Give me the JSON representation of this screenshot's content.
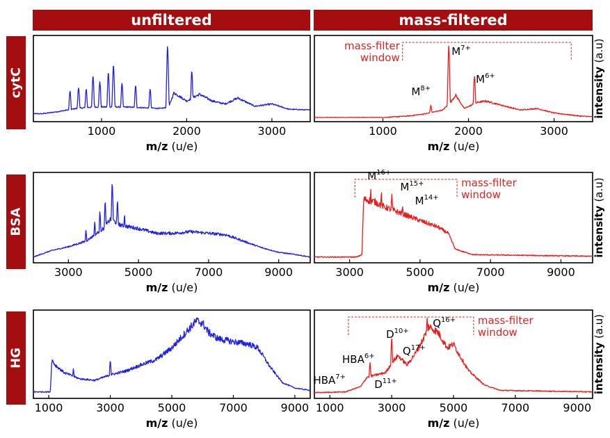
{
  "column_headers": [
    "unfiltered",
    "mass-filtered"
  ],
  "row_headers": [
    "cytC",
    "BSA",
    "HG"
  ],
  "colors": {
    "header_bg": "#a40e10",
    "unfiltered": "#1f1fe6",
    "filtered": "#ee1a1a",
    "annotation": "#e0211e"
  },
  "chart_data": [
    {
      "type": "line",
      "panel": "cytC-unfiltered",
      "color": "#1f1fe6",
      "xlabel_bold": "m/z",
      "xlabel_unit": " (u/e)",
      "ylabel": "",
      "xlim": [
        200,
        3450
      ],
      "xticks": [
        1000,
        2000,
        3000
      ],
      "tick_labels": [
        "1000",
        "2000",
        "3000"
      ],
      "x": [
        300,
        500,
        700,
        900,
        1100,
        1300,
        1500,
        1700,
        1790,
        1850,
        2000,
        2150,
        2300,
        2450,
        2600,
        2800,
        3000,
        3200,
        3450
      ],
      "y": [
        5,
        8,
        12,
        14,
        14,
        14,
        13,
        12,
        14,
        33,
        22,
        31,
        22,
        18,
        26,
        15,
        18,
        11,
        10
      ],
      "peaks": [
        [
          630,
          35
        ],
        [
          730,
          40
        ],
        [
          820,
          38
        ],
        [
          900,
          55
        ],
        [
          980,
          48
        ],
        [
          1080,
          60
        ],
        [
          1140,
          70
        ],
        [
          1240,
          45
        ],
        [
          1400,
          42
        ],
        [
          1570,
          38
        ],
        [
          1775,
          95
        ],
        [
          2060,
          62
        ]
      ]
    },
    {
      "type": "line",
      "panel": "cytC-filtered",
      "color": "#ee1a1a",
      "xlabel_bold": "m/z",
      "xlabel_unit": " (u/e)",
      "ylabel": "intensity (a.u)",
      "xlim": [
        200,
        3450
      ],
      "xticks": [
        1000,
        2000,
        3000
      ],
      "tick_labels": [
        "1000",
        "2000",
        "3000"
      ],
      "x": [
        200,
        1000,
        1300,
        1500,
        1700,
        1790,
        1850,
        1950,
        2100,
        2200,
        2400,
        2600,
        2800,
        3000,
        3300,
        3450
      ],
      "y": [
        0,
        0,
        2,
        5,
        10,
        20,
        30,
        12,
        20,
        22,
        16,
        10,
        12,
        6,
        2,
        1
      ],
      "peaks": [
        [
          1560,
          16
        ],
        [
          1770,
          96
        ],
        [
          2070,
          55
        ]
      ],
      "labels": [
        {
          "base": "M",
          "sup": "7+",
          "x": 1770
        },
        {
          "base": "M",
          "sup": "6+",
          "x": 2070
        },
        {
          "base": "M",
          "sup": "8+",
          "x": 1560
        }
      ],
      "window_label": [
        "mass-filter",
        "window"
      ],
      "window_range": [
        1230,
        3200
      ]
    },
    {
      "type": "line",
      "panel": "BSA-unfiltered",
      "color": "#1f1fe6",
      "xlabel_bold": "m/z",
      "xlabel_unit": " (u/e)",
      "ylabel": "",
      "xlim": [
        2000,
        9900
      ],
      "xticks": [
        3000,
        5000,
        7000,
        9000
      ],
      "tick_labels": [
        "3000",
        "5000",
        "7000",
        "9000"
      ],
      "x": [
        2000,
        2500,
        3000,
        3500,
        4000,
        4200,
        4500,
        5000,
        5500,
        6000,
        6500,
        7000,
        7500,
        8000,
        8500,
        9000,
        9500,
        9900
      ],
      "y": [
        2,
        10,
        15,
        22,
        38,
        50,
        42,
        38,
        32,
        32,
        34,
        32,
        30,
        22,
        14,
        8,
        5,
        2
      ],
      "peaks": [
        [
          3500,
          35
        ],
        [
          3750,
          45
        ],
        [
          3900,
          58
        ],
        [
          4050,
          70
        ],
        [
          4250,
          95
        ],
        [
          4400,
          70
        ],
        [
          4600,
          55
        ]
      ]
    },
    {
      "type": "line",
      "panel": "BSA-filtered",
      "color": "#ee1a1a",
      "xlabel_bold": "m/z",
      "xlabel_unit": " (u/e)",
      "ylabel": "intensity (a.u)",
      "xlim": [
        2000,
        9900
      ],
      "xticks": [
        3000,
        5000,
        7000,
        9000
      ],
      "tick_labels": [
        "3000",
        "5000",
        "7000",
        "9000"
      ],
      "x": [
        2000,
        3200,
        3350,
        3400,
        3700,
        4000,
        4300,
        4600,
        5000,
        5500,
        5800,
        6000,
        6500,
        9900
      ],
      "y": [
        2,
        2,
        5,
        75,
        72,
        65,
        60,
        55,
        48,
        40,
        32,
        12,
        5,
        3
      ],
      "peaks": [
        [
          3600,
          85
        ],
        [
          3900,
          83
        ],
        [
          4200,
          80
        ],
        [
          4500,
          65
        ]
      ],
      "labels": [
        {
          "base": "M",
          "sup": "16+",
          "x": 3900
        },
        {
          "base": "M",
          "sup": "15+",
          "x": 4200
        },
        {
          "base": "M",
          "sup": "14+",
          "x": 4500
        }
      ],
      "window_label": [
        "mass-filter",
        "window"
      ],
      "window_range": [
        3150,
        6050
      ]
    },
    {
      "type": "line",
      "panel": "HG-unfiltered",
      "color": "#1f1fe6",
      "xlabel_bold": "m/z",
      "xlabel_unit": " (u/e)",
      "ylabel": "",
      "xlim": [
        500,
        9500
      ],
      "xticks": [
        1000,
        3000,
        5000,
        7000,
        9000
      ],
      "tick_labels": [
        "1000",
        "3000",
        "5000",
        "7000",
        "9000"
      ],
      "x": [
        500,
        1050,
        1100,
        1200,
        1500,
        2000,
        2500,
        3000,
        3500,
        4000,
        4500,
        5000,
        5500,
        5800,
        6000,
        6200,
        6500,
        7000,
        7500,
        7800,
        8200,
        8600,
        9000,
        9500
      ],
      "y": [
        3,
        3,
        45,
        38,
        28,
        20,
        18,
        25,
        30,
        38,
        45,
        60,
        82,
        95,
        92,
        80,
        72,
        68,
        65,
        60,
        35,
        15,
        8,
        5
      ],
      "peaks": [
        [
          1800,
          32
        ],
        [
          3000,
          44
        ],
        [
          3300,
          28
        ],
        [
          4100,
          33
        ]
      ]
    },
    {
      "type": "line",
      "panel": "HG-filtered",
      "color": "#ee1a1a",
      "xlabel_bold": "m/z",
      "xlabel_unit": " (u/e)",
      "ylabel": "intensity (a.u)",
      "xlim": [
        500,
        9500
      ],
      "xticks": [
        1000,
        3000,
        5000,
        7000,
        9000
      ],
      "tick_labels": [
        "1000",
        "3000",
        "5000",
        "7000",
        "9000"
      ],
      "x": [
        500,
        1500,
        2000,
        2200,
        2500,
        2800,
        3000,
        3200,
        3500,
        3800,
        4000,
        4200,
        4500,
        4800,
        5000,
        5200,
        5500,
        6000,
        6500,
        9500
      ],
      "y": [
        2,
        3,
        10,
        22,
        25,
        28,
        40,
        50,
        38,
        55,
        70,
        88,
        80,
        60,
        65,
        50,
        30,
        12,
        5,
        3
      ],
      "peaks": [
        [
          2300,
          40
        ],
        [
          2800,
          22
        ],
        [
          3000,
          72
        ],
        [
          3850,
          50
        ],
        [
          4150,
          98
        ],
        [
          5000,
          66
        ]
      ],
      "labels": [
        {
          "base": "HBA",
          "sup": "7+",
          "x": 1950
        },
        {
          "base": "HBA",
          "sup": "6+",
          "x": 2300
        },
        {
          "base": "D",
          "sup": "11+",
          "x": 2800
        },
        {
          "base": "D",
          "sup": "10+",
          "x": 3000
        },
        {
          "base": "Q",
          "sup": "17+",
          "x": 3850
        },
        {
          "base": "Q",
          "sup": "16+",
          "x": 4150
        }
      ],
      "window_label": [
        "mass-filter",
        "window"
      ],
      "window_range": [
        1600,
        5650
      ]
    }
  ]
}
